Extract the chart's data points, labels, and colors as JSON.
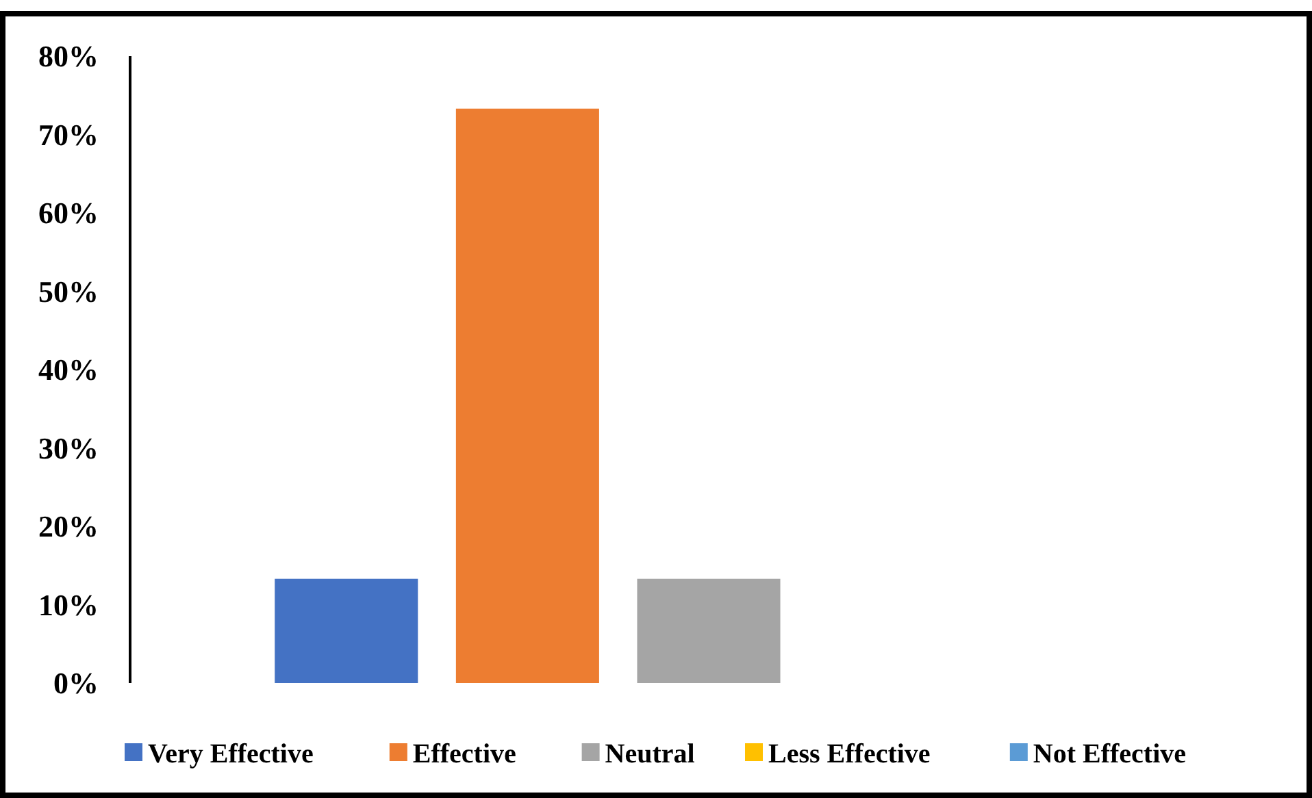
{
  "chart_data": {
    "type": "bar",
    "categories": [
      null
    ],
    "series": [
      {
        "name": "Very Effective",
        "color": "#4472c4",
        "values": [
          13.3
        ]
      },
      {
        "name": "Effective",
        "color": "#ed7d31",
        "values": [
          73.3
        ]
      },
      {
        "name": "Neutral",
        "color": "#a5a5a5",
        "values": [
          13.3
        ]
      },
      {
        "name": "Less Effective",
        "color": "#ffc000",
        "values": [
          0
        ]
      },
      {
        "name": "Not Effective",
        "color": "#5b9bd5",
        "values": [
          0
        ]
      }
    ],
    "ylim": [
      0,
      80
    ],
    "yticks": [
      {
        "value": 0,
        "label": "0%"
      },
      {
        "value": 10,
        "label": "10%"
      },
      {
        "value": 20,
        "label": "20%"
      },
      {
        "value": 30,
        "label": "30%"
      },
      {
        "value": 40,
        "label": "40%"
      },
      {
        "value": 50,
        "label": "50%"
      },
      {
        "value": 60,
        "label": "60%"
      },
      {
        "value": 70,
        "label": "70%"
      },
      {
        "value": 80,
        "label": "80%"
      }
    ],
    "grid": false,
    "legend": "bottom"
  }
}
